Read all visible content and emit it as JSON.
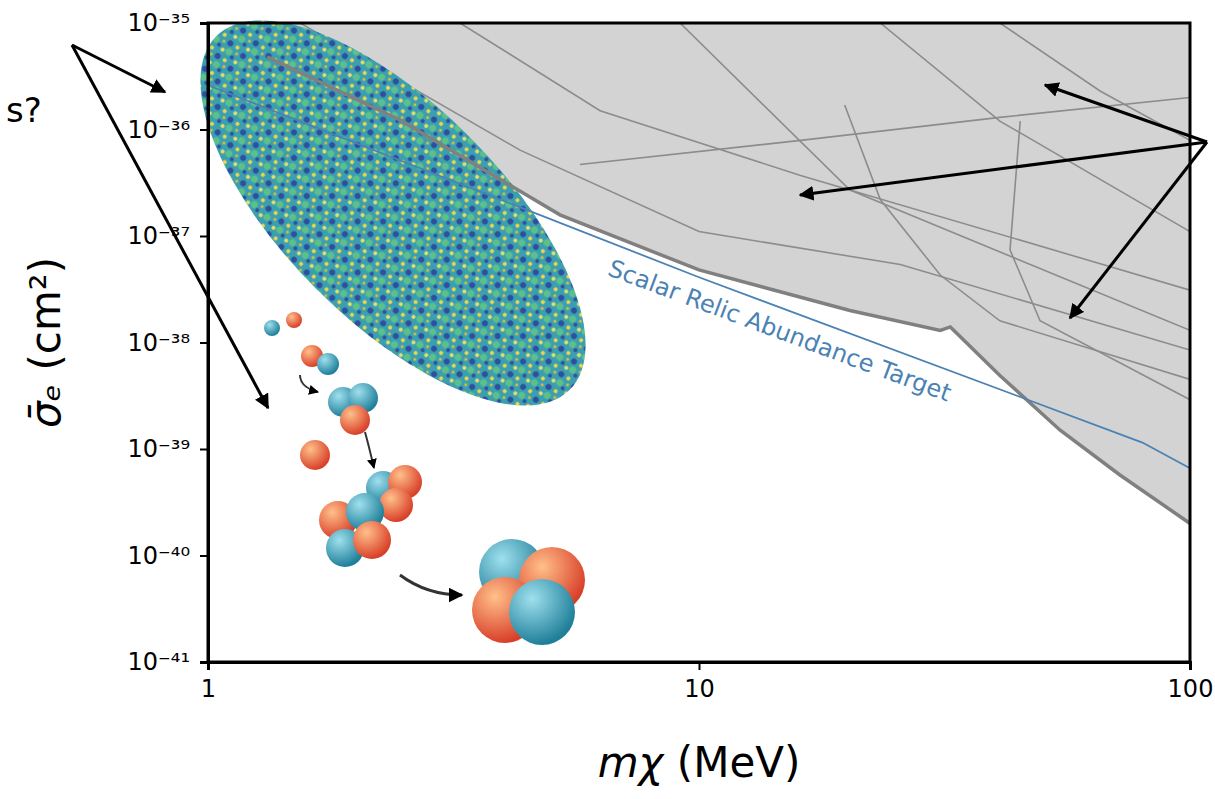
{
  "chart_data": {
    "type": "line",
    "x_label": "mχ (MeV)",
    "y_label": "σ̄ₑ (cm²)",
    "log": true,
    "grid": false,
    "xlim": [
      1,
      100
    ],
    "ylim": [
      1e-41,
      1e-35
    ],
    "xticks": [
      1,
      10,
      100
    ],
    "yticks": [
      {
        "value": 1e-41,
        "label": "10⁻⁴¹"
      },
      {
        "value": 1e-40,
        "label": "10⁻⁴⁰"
      },
      {
        "value": 1e-39,
        "label": "10⁻³⁹"
      },
      {
        "value": 1e-38,
        "label": "10⁻³⁸"
      },
      {
        "value": 1e-37,
        "label": "10⁻³⁷"
      },
      {
        "value": 1e-36,
        "label": "10⁻³⁶"
      },
      {
        "value": 1e-35,
        "label": "10⁻³⁵"
      }
    ],
    "series": [
      {
        "type": "area",
        "color": "#808080",
        "line_style": "solid",
        "x": [
          1.32,
          2.46,
          5.21,
          10,
          20.3,
          31,
          32.5,
          41,
          54.4,
          72,
          100
        ],
        "values": [
          4.8e-36,
          1.23e-36,
          1.58e-37,
          4.8e-38,
          2e-38,
          1.3e-38,
          1.4e-38,
          4.9e-39,
          1.5e-39,
          5.7e-40,
          2e-40
        ]
      },
      {
        "type": "line",
        "color": "#8c8c8c",
        "line_style": "solid",
        "x": [
          1.54,
          4.32,
          10,
          25.7,
          100
        ],
        "values": [
          1e-35,
          6.4e-37,
          1.1e-37,
          5.4e-38,
          8.5e-39
        ]
      },
      {
        "type": "line",
        "color": "#8c8c8c",
        "line_style": "solid",
        "x": [
          3.26,
          6.29,
          16.1,
          100
        ],
        "values": [
          1e-35,
          1.5e-36,
          3.7e-37,
          3.1e-38
        ]
      },
      {
        "type": "line",
        "color": "#8c8c8c",
        "line_style": "solid",
        "x": [
          5.72,
          16.1,
          41,
          100
        ],
        "values": [
          4.7e-37,
          7.9e-37,
          1.3e-36,
          2e-36
        ]
      },
      {
        "type": "line",
        "color": "#8c8c8c",
        "line_style": "solid",
        "x": [
          23.4,
          41,
          100
        ],
        "values": [
          1e-35,
          1.2e-36,
          1.1e-37
        ]
      },
      {
        "type": "line",
        "color": "#8c8c8c",
        "line_style": "solid",
        "x": [
          41,
          65.6,
          100
        ],
        "values": [
          1e-35,
          2.3e-36,
          7.9e-37
        ]
      },
      {
        "type": "line",
        "color": "#8c8c8c",
        "line_style": "solid",
        "x": [
          19.8,
          23.4,
          31,
          41,
          100
        ],
        "values": [
          1.7e-36,
          2.2e-37,
          4.3e-38,
          1.6e-38,
          4.5e-39
        ]
      },
      {
        "type": "line",
        "color": "#8c8c8c",
        "line_style": "solid",
        "x": [
          45.1,
          43,
          49.5,
          100
        ],
        "values": [
          1.2e-36,
          7.4e-38,
          1.6e-38,
          2.9e-39
        ]
      },
      {
        "type": "line",
        "color": "#8c8c8c",
        "line_style": "solid",
        "x": [
          9.15,
          20.3,
          100
        ],
        "values": [
          1e-35,
          2.7e-37,
          1.3e-38
        ]
      },
      {
        "name": "Scalar Relic Abundance Target",
        "type": "line",
        "color": "#4a82b4",
        "line_style": "solid",
        "x": [
          1,
          10,
          80,
          100
        ],
        "values": [
          2.6e-36,
          4.1e-38,
          1.15e-39,
          6.6e-40
        ]
      }
    ],
    "annotations": [
      {
        "text": "s?"
      }
    ]
  }
}
